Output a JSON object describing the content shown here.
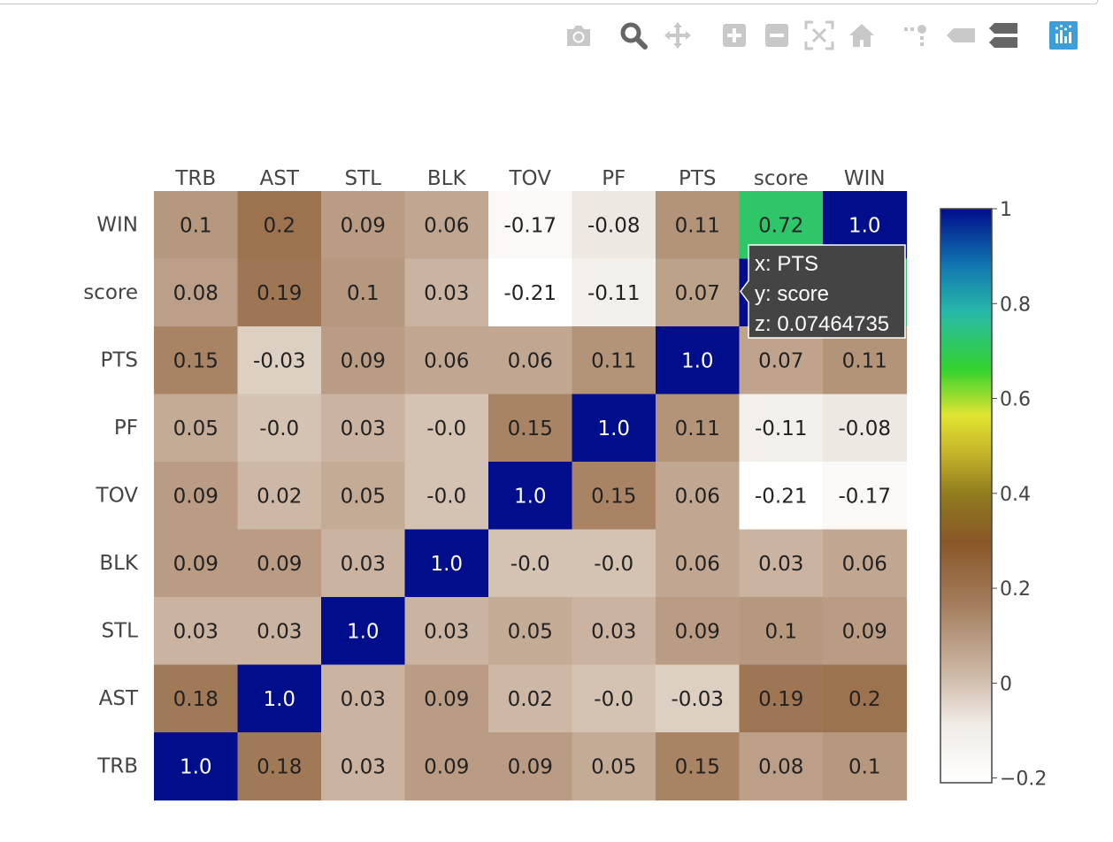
{
  "modebar": {
    "buttons": [
      {
        "icon": "camera-icon",
        "label": "Download plot as a png"
      },
      {
        "icon": "zoom-icon",
        "label": "Zoom"
      },
      {
        "icon": "pan-icon",
        "label": "Pan"
      },
      {
        "icon": "zoom-in-icon",
        "label": "Zoom in"
      },
      {
        "icon": "zoom-out-icon",
        "label": "Zoom out"
      },
      {
        "icon": "autoscale-icon",
        "label": "Autoscale"
      },
      {
        "icon": "home-icon",
        "label": "Reset axes"
      },
      {
        "icon": "spike-lines-icon",
        "label": "Toggle Spike Lines"
      },
      {
        "icon": "hover-closest-icon",
        "label": "Show closest data on hover"
      },
      {
        "icon": "hover-compare-icon",
        "label": "Compare data on hover"
      },
      {
        "icon": "plotly-logo-icon",
        "label": "Produced with Plotly"
      }
    ],
    "active_color": "#3d9ed8",
    "icon_color": "#c8c8c8",
    "dark_icon_color": "#666666"
  },
  "tooltip": {
    "x_line": "x: PTS",
    "y_line": "y: score",
    "z_line": "z: 0.07464735"
  },
  "chart_data": {
    "type": "heatmap",
    "x": [
      "TRB",
      "AST",
      "STL",
      "BLK",
      "TOV",
      "PF",
      "PTS",
      "score",
      "WIN"
    ],
    "y": [
      "WIN",
      "score",
      "PTS",
      "PF",
      "TOV",
      "BLK",
      "STL",
      "AST",
      "TRB"
    ],
    "z": [
      [
        0.1,
        0.2,
        0.09,
        0.06,
        -0.17,
        -0.08,
        0.11,
        0.72,
        1.0
      ],
      [
        0.08,
        0.19,
        0.1,
        0.03,
        -0.21,
        -0.11,
        0.07464735,
        1.0,
        0.72
      ],
      [
        0.15,
        -0.03,
        0.09,
        0.06,
        0.06,
        0.11,
        1.0,
        0.07,
        0.11
      ],
      [
        0.05,
        -0.001,
        0.03,
        -0.001,
        0.15,
        1.0,
        0.11,
        -0.11,
        -0.08
      ],
      [
        0.09,
        0.02,
        0.05,
        -0.001,
        1.0,
        0.15,
        0.06,
        -0.21,
        -0.17
      ],
      [
        0.09,
        0.09,
        0.03,
        1.0,
        -0.001,
        -0.001,
        0.06,
        0.03,
        0.06
      ],
      [
        0.03,
        0.03,
        1.0,
        0.03,
        0.05,
        0.03,
        0.09,
        0.1,
        0.09
      ],
      [
        0.18,
        1.0,
        0.03,
        0.09,
        0.02,
        -0.001,
        -0.03,
        0.19,
        0.2
      ],
      [
        1.0,
        0.18,
        0.03,
        0.09,
        0.09,
        0.05,
        0.15,
        0.08,
        0.1
      ]
    ],
    "text": [
      [
        "0.1",
        "0.2",
        "0.09",
        "0.06",
        "-0.17",
        "-0.08",
        "0.11",
        "0.72",
        "1.0"
      ],
      [
        "0.08",
        "0.19",
        "0.1",
        "0.03",
        "-0.21",
        "-0.11",
        "0.07",
        "1.0",
        "0.72"
      ],
      [
        "0.15",
        "-0.03",
        "0.09",
        "0.06",
        "0.06",
        "0.11",
        "1.0",
        "0.07",
        "0.11"
      ],
      [
        "0.05",
        "-0.0",
        "0.03",
        "-0.0",
        "0.15",
        "1.0",
        "0.11",
        "-0.11",
        "-0.08"
      ],
      [
        "0.09",
        "0.02",
        "0.05",
        "-0.0",
        "1.0",
        "0.15",
        "0.06",
        "-0.21",
        "-0.17"
      ],
      [
        "0.09",
        "0.09",
        "0.03",
        "1.0",
        "-0.0",
        "-0.0",
        "0.06",
        "0.03",
        "0.06"
      ],
      [
        "0.03",
        "0.03",
        "1.0",
        "0.03",
        "0.05",
        "0.03",
        "0.09",
        "0.1",
        "0.09"
      ],
      [
        "0.18",
        "1.0",
        "0.03",
        "0.09",
        "0.02",
        "-0.0",
        "-0.03",
        "0.19",
        "0.2"
      ],
      [
        "1.0",
        "0.18",
        "0.03",
        "0.09",
        "0.09",
        "0.05",
        "0.15",
        "0.08",
        "0.1"
      ]
    ],
    "zmin": -0.21,
    "zmax": 1.0,
    "colorscale": "gist_earth_r",
    "colorscale_stops": [
      [
        0.0,
        "#ffffff"
      ],
      [
        0.1,
        "#f0ece6"
      ],
      [
        0.2,
        "#c9b29f"
      ],
      [
        0.32,
        "#a17a58"
      ],
      [
        0.42,
        "#8a5728"
      ],
      [
        0.5,
        "#8f7a1e"
      ],
      [
        0.58,
        "#c8b82a"
      ],
      [
        0.64,
        "#e2e432"
      ],
      [
        0.72,
        "#34d22e"
      ],
      [
        0.82,
        "#27b9a8"
      ],
      [
        0.9,
        "#1177b0"
      ],
      [
        1.0,
        "#000e8c"
      ]
    ],
    "colorbar": {
      "tick_labels": [
        "1",
        "0.8",
        "0.6",
        "0.4",
        "0.2",
        "0",
        "−0.2"
      ],
      "tick_values": [
        1.0,
        0.8,
        0.6,
        0.4,
        0.2,
        0.0,
        -0.2
      ]
    },
    "x_axis_side": "top",
    "grid": false
  }
}
